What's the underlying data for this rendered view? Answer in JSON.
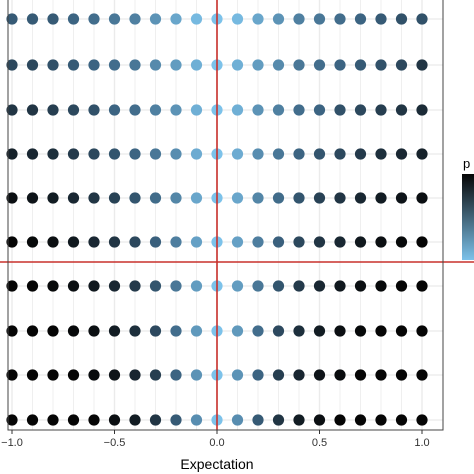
{
  "chart_data": {
    "type": "scatter",
    "title": "",
    "xlabel": "Expectation",
    "ylabel": "",
    "xlim": [
      -1.02,
      1.02
    ],
    "x_ticks": [
      -1.0,
      -0.5,
      0.0,
      0.5,
      1.0
    ],
    "x_tick_labels": [
      "−1.0",
      "−0.5",
      "0.0",
      "0.5",
      "1.0"
    ],
    "grid": true,
    "x_values": [
      -1.0,
      -0.9,
      -0.8,
      -0.7,
      -0.6,
      -0.5,
      -0.4,
      -0.3,
      -0.2,
      -0.1,
      0.0,
      0.1,
      0.2,
      0.3,
      0.4,
      0.5,
      0.6,
      0.7,
      0.8,
      0.9,
      1.0
    ],
    "rows": [
      {
        "row": 1,
        "shade": [
          0.55,
          0.55,
          0.55,
          0.5,
          0.45,
          0.4,
          0.35,
          0.25,
          0.15,
          0.05,
          0.0,
          0.05,
          0.15,
          0.25,
          0.35,
          0.4,
          0.45,
          0.5,
          0.55,
          0.6,
          0.6
        ]
      },
      {
        "row": 2,
        "shade": [
          0.65,
          0.65,
          0.6,
          0.55,
          0.5,
          0.45,
          0.4,
          0.3,
          0.2,
          0.1,
          0.0,
          0.1,
          0.2,
          0.3,
          0.4,
          0.45,
          0.5,
          0.55,
          0.6,
          0.65,
          0.75
        ]
      },
      {
        "row": 3,
        "shade": [
          0.75,
          0.75,
          0.7,
          0.65,
          0.6,
          0.5,
          0.45,
          0.35,
          0.25,
          0.1,
          0.0,
          0.1,
          0.25,
          0.35,
          0.45,
          0.5,
          0.6,
          0.65,
          0.7,
          0.75,
          0.8
        ]
      },
      {
        "row": 4,
        "shade": [
          0.85,
          0.82,
          0.78,
          0.72,
          0.65,
          0.58,
          0.5,
          0.4,
          0.28,
          0.12,
          0.0,
          0.12,
          0.28,
          0.4,
          0.5,
          0.58,
          0.65,
          0.72,
          0.78,
          0.82,
          0.85
        ]
      },
      {
        "row": 5,
        "shade": [
          0.95,
          0.92,
          0.88,
          0.82,
          0.75,
          0.68,
          0.58,
          0.46,
          0.32,
          0.15,
          0.0,
          0.15,
          0.32,
          0.46,
          0.58,
          0.68,
          0.75,
          0.82,
          0.88,
          0.92,
          0.95
        ]
      },
      {
        "row": 6,
        "shade": [
          1.0,
          0.98,
          0.95,
          0.9,
          0.82,
          0.75,
          0.65,
          0.52,
          0.36,
          0.18,
          0.0,
          0.18,
          0.36,
          0.52,
          0.65,
          0.75,
          0.82,
          0.9,
          0.95,
          0.98,
          1.0
        ]
      },
      {
        "row": 7,
        "shade": [
          1.0,
          1.0,
          0.98,
          0.95,
          0.9,
          0.82,
          0.72,
          0.58,
          0.4,
          0.2,
          0.0,
          0.2,
          0.4,
          0.58,
          0.72,
          0.82,
          0.9,
          0.95,
          0.98,
          1.0,
          1.0
        ]
      },
      {
        "row": 8,
        "shade": [
          1.0,
          1.0,
          1.0,
          0.98,
          0.95,
          0.88,
          0.78,
          0.64,
          0.45,
          0.22,
          0.0,
          0.22,
          0.45,
          0.64,
          0.78,
          0.88,
          0.95,
          0.98,
          1.0,
          1.0,
          1.0
        ]
      },
      {
        "row": 9,
        "shade": [
          1.0,
          1.0,
          1.0,
          1.0,
          0.97,
          0.92,
          0.83,
          0.7,
          0.5,
          0.25,
          0.0,
          0.25,
          0.5,
          0.7,
          0.83,
          0.92,
          0.97,
          1.0,
          1.0,
          1.0,
          1.0
        ]
      },
      {
        "row": 10,
        "shade": [
          1.0,
          1.0,
          1.0,
          1.0,
          1.0,
          0.95,
          0.88,
          0.75,
          0.55,
          0.28,
          0.0,
          0.28,
          0.55,
          0.75,
          0.88,
          0.95,
          1.0,
          1.0,
          1.0,
          1.0,
          1.0
        ]
      }
    ],
    "reference_lines": {
      "vertical_x": 0.0,
      "horizontal_between_rows": [
        6,
        7
      ]
    },
    "legend": {
      "title": "p",
      "placement": "right",
      "type": "colorbar"
    },
    "colors": {
      "low": "#7cc2ea",
      "high": "#050505",
      "reference_line": "#c8302c",
      "grid": "#ebebeb",
      "panel_border": "#444444"
    }
  }
}
